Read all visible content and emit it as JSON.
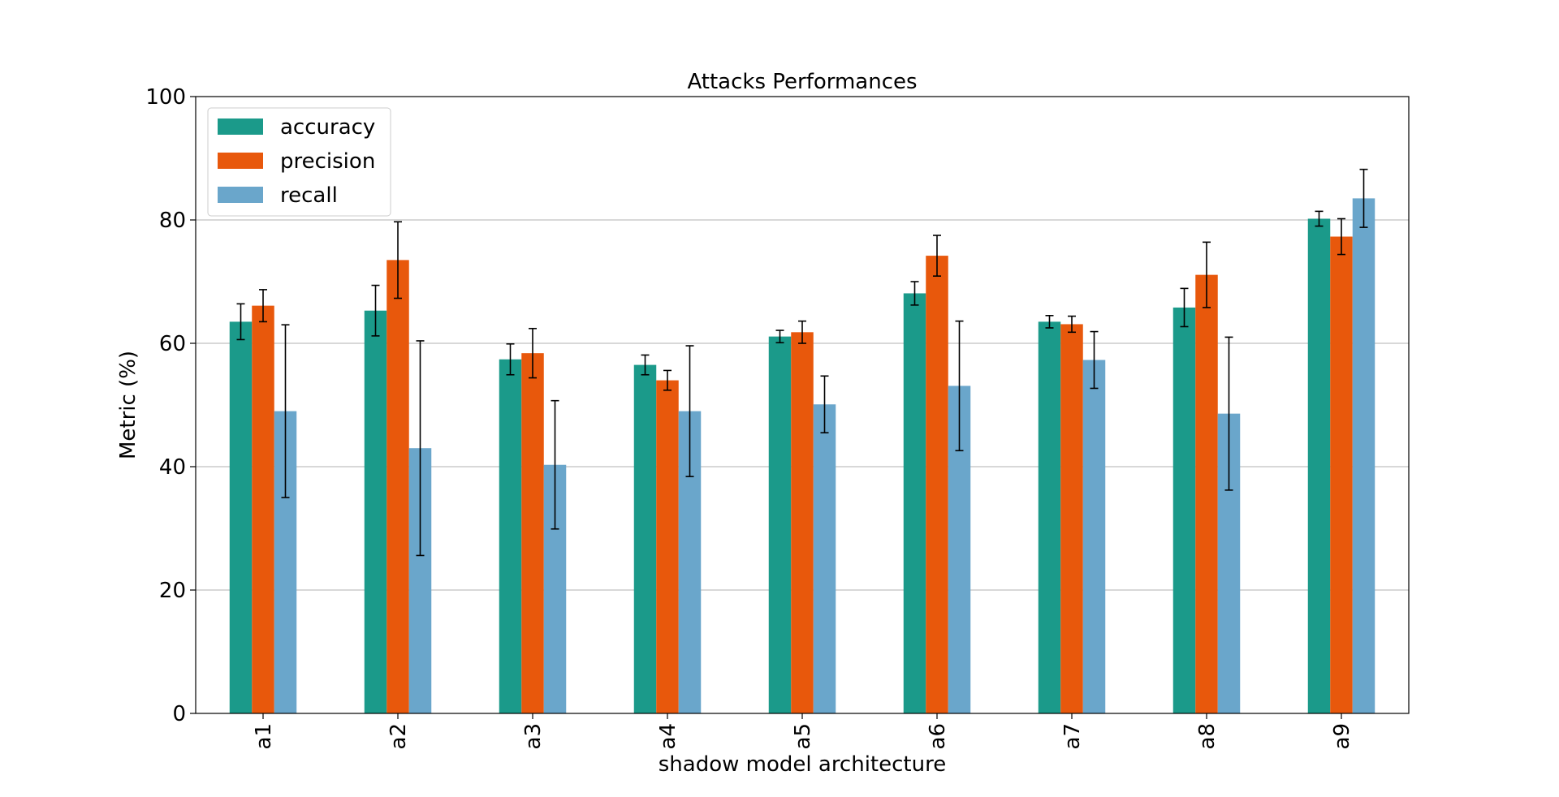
{
  "chart_data": {
    "type": "bar",
    "title": "Attacks Performances",
    "xlabel": "shadow model architecture",
    "ylabel": "Metric (%)",
    "ylim": [
      0,
      100
    ],
    "yticks": [
      0,
      20,
      40,
      60,
      80,
      100
    ],
    "grid": "horizontal",
    "legend_position": "top-left",
    "categories": [
      "a1",
      "a2",
      "a3",
      "a4",
      "a5",
      "a6",
      "a7",
      "a8",
      "a9"
    ],
    "series": [
      {
        "name": "accuracy",
        "color": "#1b9a8a",
        "values": [
          63.5,
          65.3,
          57.4,
          56.5,
          61.1,
          68.1,
          63.5,
          65.8,
          80.2
        ],
        "errors": [
          2.9,
          4.1,
          2.5,
          1.6,
          1.0,
          1.9,
          1.0,
          3.1,
          1.2
        ]
      },
      {
        "name": "precision",
        "color": "#e8580c",
        "values": [
          66.1,
          73.5,
          58.4,
          54.0,
          61.8,
          74.2,
          63.1,
          71.1,
          77.3
        ],
        "errors": [
          2.6,
          6.2,
          4.0,
          1.6,
          1.8,
          3.3,
          1.3,
          5.3,
          2.9
        ]
      },
      {
        "name": "recall",
        "color": "#6aa6cb",
        "values": [
          49.0,
          43.0,
          40.3,
          49.0,
          50.1,
          53.1,
          57.3,
          48.6,
          83.5
        ],
        "errors": [
          14.0,
          17.4,
          10.4,
          10.6,
          4.6,
          10.5,
          4.6,
          12.4,
          4.7
        ]
      }
    ]
  }
}
